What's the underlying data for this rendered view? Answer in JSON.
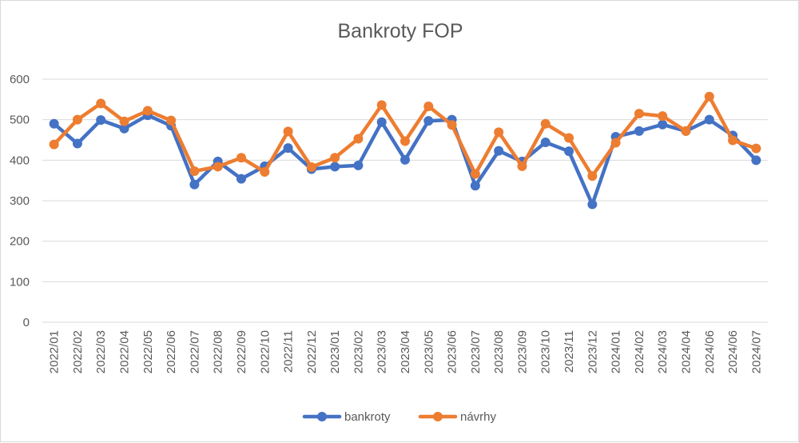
{
  "chart_data": {
    "type": "line",
    "title": "Bankroty FOP",
    "xlabel": "",
    "ylabel": "",
    "ylim": [
      0,
      600
    ],
    "yticks": [
      0,
      100,
      200,
      300,
      400,
      500,
      600
    ],
    "grid": true,
    "legend_position": "bottom",
    "categories": [
      "2022/01",
      "2022/02",
      "2022/03",
      "2022/04",
      "2022/05",
      "2022/06",
      "2022/07",
      "2022/08",
      "2022/09",
      "2022/10",
      "2022/11",
      "2022/12",
      "2023/01",
      "2023/02",
      "2023/03",
      "2023/04",
      "2023/05",
      "2023/06",
      "2023/07",
      "2023/08",
      "2023/09",
      "2023/10",
      "2023/11",
      "2023/12",
      "2024/01",
      "2024/02",
      "2024/03",
      "2024/04",
      "2024/06",
      "2024/06",
      "2024/07"
    ],
    "series": [
      {
        "name": "bankroty",
        "color": "#4472C4",
        "values": [
          490,
          441,
          499,
          478,
          511,
          485,
          340,
          397,
          354,
          385,
          430,
          378,
          384,
          387,
          494,
          401,
          497,
          500,
          337,
          423,
          397,
          444,
          422,
          291,
          458,
          472,
          488,
          472,
          500,
          461,
          400
        ]
      },
      {
        "name": "návrhy",
        "color": "#ED7D31",
        "values": [
          439,
          500,
          540,
          496,
          522,
          498,
          373,
          384,
          406,
          371,
          471,
          383,
          406,
          453,
          536,
          447,
          533,
          487,
          366,
          469,
          385,
          490,
          455,
          361,
          443,
          515,
          509,
          472,
          557,
          449,
          429
        ]
      }
    ]
  }
}
